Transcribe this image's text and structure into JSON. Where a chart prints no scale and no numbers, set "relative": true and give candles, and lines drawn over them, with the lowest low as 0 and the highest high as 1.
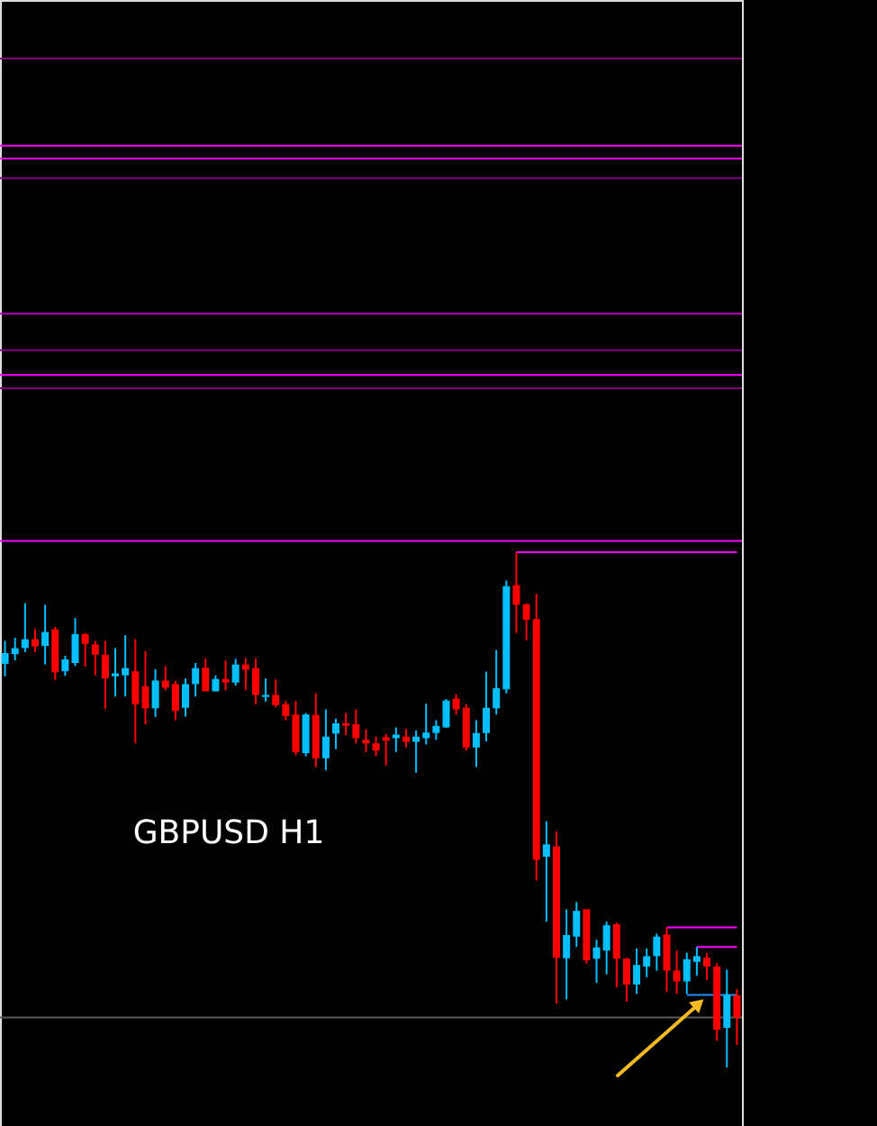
{
  "chart_data": {
    "type": "candlestick",
    "title": "GBPUSD H1",
    "relative": true,
    "categories": [
      null,
      null,
      null,
      null,
      null,
      null,
      null,
      null,
      null,
      null,
      null,
      null,
      null,
      null,
      null,
      null,
      null,
      null,
      null,
      null,
      null,
      null,
      null,
      null,
      null,
      null,
      null,
      null,
      null,
      null,
      null,
      null,
      null,
      null,
      null,
      null,
      null,
      null,
      null,
      null,
      null,
      null,
      null,
      null,
      null,
      null,
      null,
      null,
      null,
      null,
      null,
      null,
      null,
      null,
      null,
      null,
      null,
      null,
      null,
      null,
      null,
      null,
      null,
      null,
      null,
      null,
      null,
      null,
      null,
      null,
      null,
      null,
      null,
      null
    ],
    "ohlc": [
      [
        0.783,
        0.828,
        0.759,
        0.804
      ],
      [
        0.802,
        0.834,
        0.79,
        0.814
      ],
      [
        0.814,
        0.901,
        0.806,
        0.831
      ],
      [
        0.831,
        0.851,
        0.806,
        0.817
      ],
      [
        0.818,
        0.898,
        0.782,
        0.845
      ],
      [
        0.85,
        0.855,
        0.752,
        0.767
      ],
      [
        0.769,
        0.799,
        0.76,
        0.792
      ],
      [
        0.785,
        0.872,
        0.779,
        0.841
      ],
      [
        0.841,
        0.843,
        0.778,
        0.822
      ],
      [
        0.821,
        0.828,
        0.761,
        0.801
      ],
      [
        0.801,
        0.828,
        0.696,
        0.755
      ],
      [
        0.759,
        0.814,
        0.72,
        0.765
      ],
      [
        0.761,
        0.839,
        0.72,
        0.775
      ],
      [
        0.769,
        0.831,
        0.629,
        0.705
      ],
      [
        0.74,
        0.808,
        0.666,
        0.697
      ],
      [
        0.697,
        0.773,
        0.68,
        0.751
      ],
      [
        0.751,
        0.779,
        0.732,
        0.737
      ],
      [
        0.744,
        0.75,
        0.674,
        0.692
      ],
      [
        0.698,
        0.755,
        0.681,
        0.744
      ],
      [
        0.744,
        0.785,
        0.72,
        0.775
      ],
      [
        0.776,
        0.794,
        0.73,
        0.73
      ],
      [
        0.73,
        0.761,
        0.73,
        0.754
      ],
      [
        0.754,
        0.79,
        0.732,
        0.747
      ],
      [
        0.747,
        0.793,
        0.741,
        0.782
      ],
      [
        0.782,
        0.794,
        0.732,
        0.772
      ],
      [
        0.775,
        0.794,
        0.705,
        0.723
      ],
      [
        0.719,
        0.755,
        0.71,
        0.723
      ],
      [
        0.723,
        0.753,
        0.699,
        0.703
      ],
      [
        0.705,
        0.711,
        0.674,
        0.682
      ],
      [
        0.685,
        0.711,
        0.606,
        0.612
      ],
      [
        0.61,
        0.688,
        0.604,
        0.685
      ],
      [
        0.684,
        0.726,
        0.583,
        0.6
      ],
      [
        0.6,
        0.695,
        0.577,
        0.642
      ],
      [
        0.648,
        0.677,
        0.618,
        0.668
      ],
      [
        0.668,
        0.688,
        0.645,
        0.663
      ],
      [
        0.666,
        0.695,
        0.629,
        0.639
      ],
      [
        0.636,
        0.656,
        0.612,
        0.629
      ],
      [
        0.629,
        0.642,
        0.604,
        0.615
      ],
      [
        0.641,
        0.647,
        0.586,
        0.634
      ],
      [
        0.639,
        0.66,
        0.612,
        0.646
      ],
      [
        0.642,
        0.657,
        0.621,
        0.632
      ],
      [
        0.632,
        0.654,
        0.572,
        0.642
      ],
      [
        0.639,
        0.706,
        0.627,
        0.65
      ],
      [
        0.649,
        0.674,
        0.636,
        0.663
      ],
      [
        0.66,
        0.715,
        0.659,
        0.712
      ],
      [
        0.716,
        0.724,
        0.685,
        0.695
      ],
      [
        0.698,
        0.705,
        0.615,
        0.621
      ],
      [
        0.621,
        0.674,
        0.583,
        0.649
      ],
      [
        0.649,
        0.768,
        0.633,
        0.698
      ],
      [
        0.697,
        0.81,
        0.685,
        0.736
      ],
      [
        0.734,
        0.945,
        0.726,
        0.934
      ],
      [
        0.936,
        1.0,
        0.843,
        0.898
      ],
      [
        0.899,
        0.901,
        0.829,
        0.869
      ],
      [
        0.87,
        0.919,
        0.363,
        0.403
      ],
      [
        0.409,
        0.478,
        0.283,
        0.433
      ],
      [
        0.429,
        0.458,
        0.124,
        0.213
      ],
      [
        0.212,
        0.307,
        0.132,
        0.257
      ],
      [
        0.254,
        0.321,
        0.234,
        0.304
      ],
      [
        0.307,
        0.307,
        0.202,
        0.208
      ],
      [
        0.211,
        0.248,
        0.164,
        0.233
      ],
      [
        0.227,
        0.283,
        0.181,
        0.276
      ],
      [
        0.278,
        0.281,
        0.155,
        0.211
      ],
      [
        0.211,
        0.213,
        0.128,
        0.161
      ],
      [
        0.161,
        0.231,
        0.143,
        0.199
      ],
      [
        0.196,
        0.231,
        0.175,
        0.216
      ],
      [
        0.216,
        0.26,
        0.188,
        0.254
      ],
      [
        0.258,
        0.272,
        0.147,
        0.188
      ],
      [
        0.188,
        0.227,
        0.143,
        0.167
      ],
      [
        0.167,
        0.223,
        0.143,
        0.21
      ],
      [
        0.205,
        0.234,
        0.178,
        0.216
      ],
      [
        0.213,
        0.222,
        0.17,
        0.196
      ],
      [
        0.196,
        0.202,
        0.052,
        0.073
      ],
      [
        0.077,
        0.19,
        0.0,
        0.141
      ],
      [
        0.14,
        0.152,
        0.044,
        0.097
      ]
    ],
    "colors": [
      "#00bfff",
      "#00bfff",
      "#00bfff",
      "#ff0000",
      "#00bfff",
      "#ff0000",
      "#00bfff",
      "#00bfff",
      "#ff0000",
      "#ff0000",
      "#ff0000",
      "#00bfff",
      "#00bfff",
      "#ff0000",
      "#ff0000",
      "#00bfff",
      "#ff0000",
      "#ff0000",
      "#00bfff",
      "#00bfff",
      "#ff0000",
      "#00bfff",
      "#ff0000",
      "#00bfff",
      "#ff0000",
      "#ff0000",
      "#00bfff",
      "#ff0000",
      "#ff0000",
      "#ff0000",
      "#00bfff",
      "#ff0000",
      "#00bfff",
      "#00bfff",
      "#ff0000",
      "#ff0000",
      "#ff0000",
      "#ff0000",
      "#ff0000",
      "#00bfff",
      "#ff0000",
      "#00bfff",
      "#00bfff",
      "#00bfff",
      "#00bfff",
      "#ff0000",
      "#ff0000",
      "#00bfff",
      "#00bfff",
      "#00bfff",
      "#00bfff",
      "#ff0000",
      "#ff0000",
      "#ff0000",
      "#00bfff",
      "#ff0000",
      "#00bfff",
      "#00bfff",
      "#ff0000",
      "#00bfff",
      "#00bfff",
      "#ff0000",
      "#ff0000",
      "#00bfff",
      "#00bfff",
      "#00bfff",
      "#ff0000",
      "#ff0000",
      "#00bfff",
      "#00bfff",
      "#ff0000",
      "#ff0000",
      "#00bfff",
      "#ff0000"
    ],
    "series": [
      {
        "type": "line",
        "color": "#ff00ff",
        "values": [
          null,
          null,
          null,
          null,
          null,
          null,
          null,
          null,
          null,
          null,
          null,
          null,
          null,
          null,
          null,
          null,
          null,
          null,
          null,
          null,
          null,
          null,
          null,
          null,
          null,
          null,
          null,
          null,
          null,
          null,
          null,
          null,
          null,
          null,
          null,
          null,
          null,
          null,
          null,
          null,
          null,
          null,
          null,
          null,
          null,
          null,
          null,
          null,
          null,
          null,
          null,
          1.0,
          1.0,
          1.0,
          1.0,
          1.0,
          1.0,
          1.0,
          1.0,
          1.0,
          1.0,
          1.0,
          1.0,
          1.0,
          1.0,
          1.0,
          1.0,
          1.0,
          1.0,
          1.0,
          1.0,
          1.0,
          1.0,
          1.0
        ]
      },
      {
        "type": "line",
        "color": "#ff00ff",
        "values": [
          null,
          null,
          null,
          null,
          null,
          null,
          null,
          null,
          null,
          null,
          null,
          null,
          null,
          null,
          null,
          null,
          null,
          null,
          null,
          null,
          null,
          null,
          null,
          null,
          null,
          null,
          null,
          null,
          null,
          null,
          null,
          null,
          null,
          null,
          null,
          null,
          null,
          null,
          null,
          null,
          null,
          null,
          null,
          null,
          null,
          null,
          null,
          null,
          null,
          null,
          null,
          null,
          null,
          null,
          null,
          null,
          null,
          null,
          null,
          null,
          null,
          null,
          null,
          null,
          null,
          null,
          0.272,
          0.272,
          0.272,
          0.272,
          0.272,
          0.272,
          0.272,
          0.272
        ]
      },
      {
        "type": "line",
        "color": "#ff00ff",
        "values": [
          null,
          null,
          null,
          null,
          null,
          null,
          null,
          null,
          null,
          null,
          null,
          null,
          null,
          null,
          null,
          null,
          null,
          null,
          null,
          null,
          null,
          null,
          null,
          null,
          null,
          null,
          null,
          null,
          null,
          null,
          null,
          null,
          null,
          null,
          null,
          null,
          null,
          null,
          null,
          null,
          null,
          null,
          null,
          null,
          null,
          null,
          null,
          null,
          null,
          null,
          null,
          null,
          null,
          null,
          null,
          null,
          null,
          null,
          null,
          null,
          null,
          null,
          null,
          null,
          null,
          null,
          null,
          null,
          null,
          0.234,
          0.234,
          0.234,
          0.234,
          0.234
        ]
      },
      {
        "type": "line",
        "color": "#1e90ff",
        "values": [
          null,
          null,
          null,
          null,
          null,
          null,
          null,
          null,
          null,
          null,
          null,
          null,
          null,
          null,
          null,
          null,
          null,
          null,
          null,
          null,
          null,
          null,
          null,
          null,
          null,
          null,
          null,
          null,
          null,
          null,
          null,
          null,
          null,
          null,
          null,
          null,
          null,
          null,
          null,
          null,
          null,
          null,
          null,
          null,
          null,
          null,
          null,
          null,
          null,
          null,
          null,
          null,
          null,
          null,
          null,
          null,
          null,
          null,
          null,
          null,
          null,
          null,
          null,
          null,
          null,
          null,
          null,
          null,
          0.141,
          0.141,
          0.141,
          0.141,
          0.141,
          0.141
        ]
      }
    ],
    "ref_lines": [
      {
        "axis": "y",
        "value": 1.958,
        "color": "#800080"
      },
      {
        "axis": "y",
        "value": 1.789,
        "color": "#ff00ff"
      },
      {
        "axis": "y",
        "value": 1.764,
        "color": "#ff00ff"
      },
      {
        "axis": "y",
        "value": 1.726,
        "color": "#800080"
      },
      {
        "axis": "y",
        "value": 1.463,
        "color": "#c000c0"
      },
      {
        "axis": "y",
        "value": 1.392,
        "color": "#800080"
      },
      {
        "axis": "y",
        "value": 1.344,
        "color": "#ff00ff"
      },
      {
        "axis": "y",
        "value": 1.318,
        "color": "#800080"
      },
      {
        "axis": "y",
        "value": 1.022,
        "color": "#ff00ff"
      },
      {
        "axis": "y",
        "value": 0.097,
        "color": "#5a5a5a"
      }
    ]
  }
}
